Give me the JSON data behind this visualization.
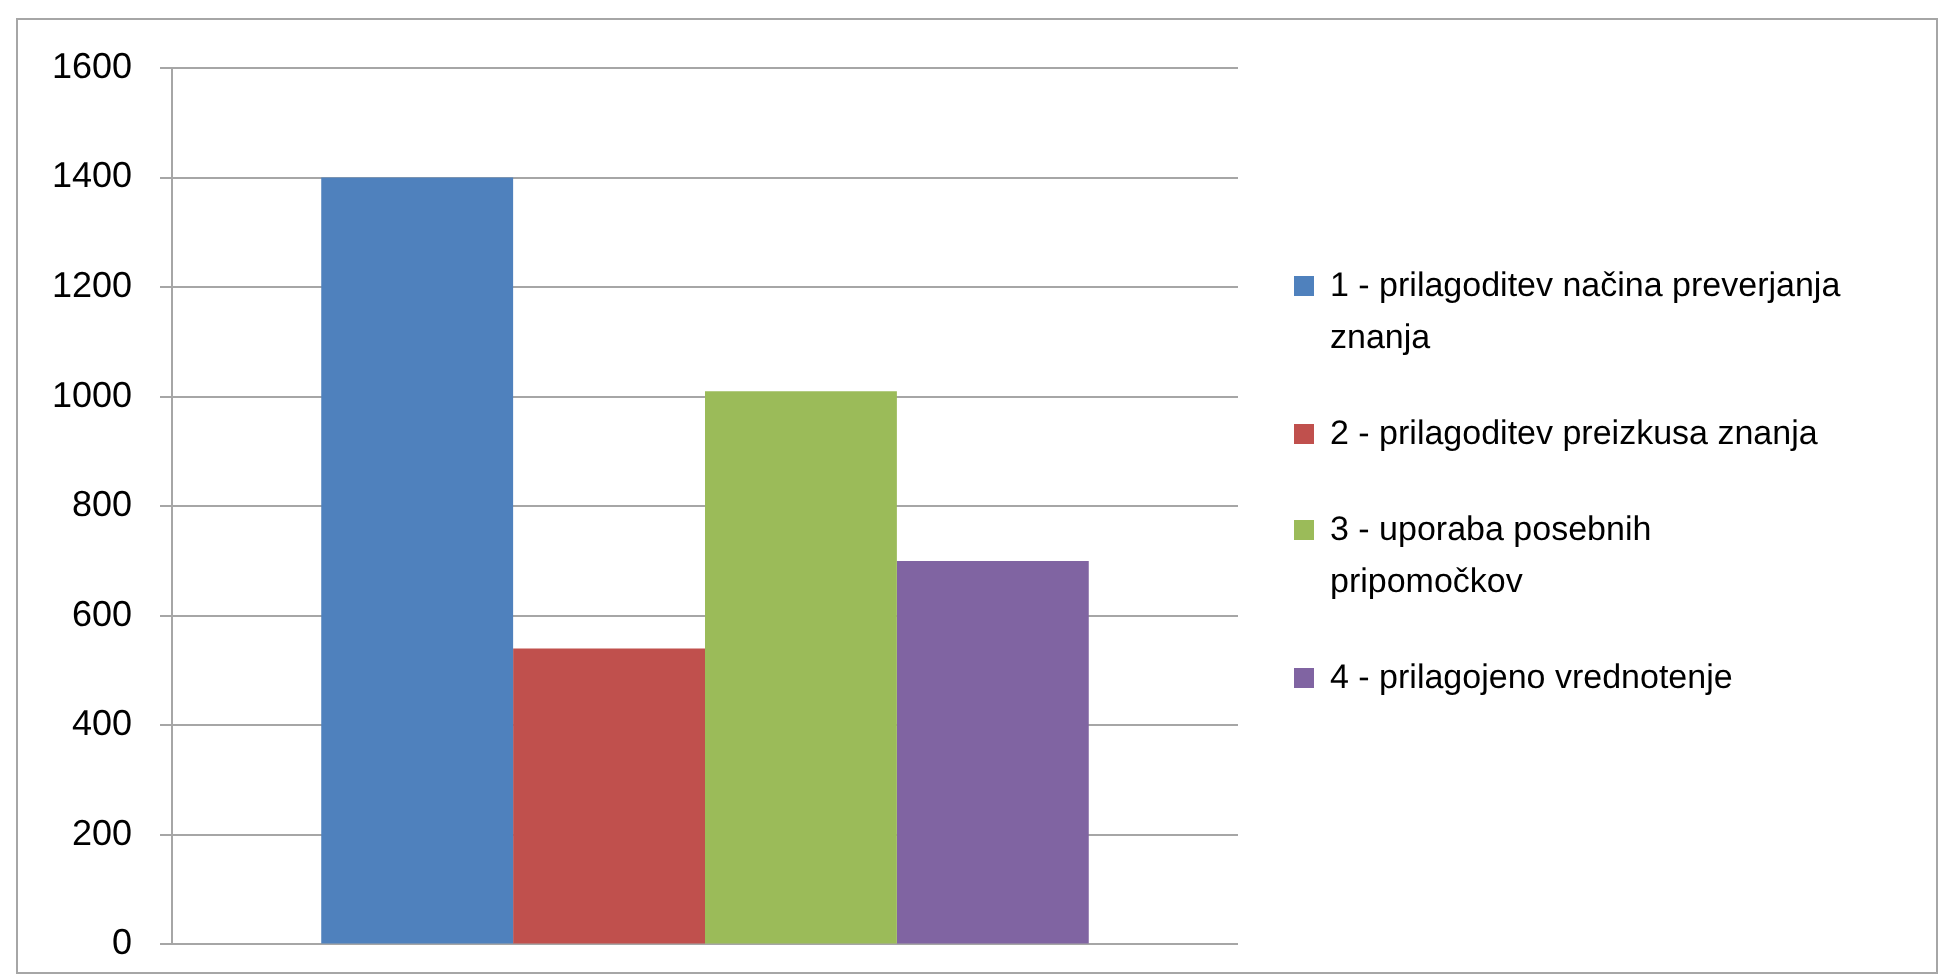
{
  "chart_data": {
    "type": "bar",
    "categories": [
      null
    ],
    "series": [
      {
        "name": "1 - prilagoditev načina preverjanja znanja",
        "color": "#4f81bd",
        "values": [
          1400
        ]
      },
      {
        "name": "2 - prilagoditev preizkusa znanja",
        "color": "#c0504d",
        "values": [
          540
        ]
      },
      {
        "name": "3 - uporaba posebnih pripomočkov",
        "color": "#9bbb59",
        "values": [
          1010
        ]
      },
      {
        "name": "4 - prilagojeno vrednotenje",
        "color": "#8064a2",
        "values": [
          700
        ]
      }
    ],
    "ylim": [
      0,
      1600
    ],
    "yticks": [
      0,
      200,
      400,
      600,
      800,
      1000,
      1200,
      1400,
      1600
    ],
    "grid": "y",
    "legend": "right"
  }
}
